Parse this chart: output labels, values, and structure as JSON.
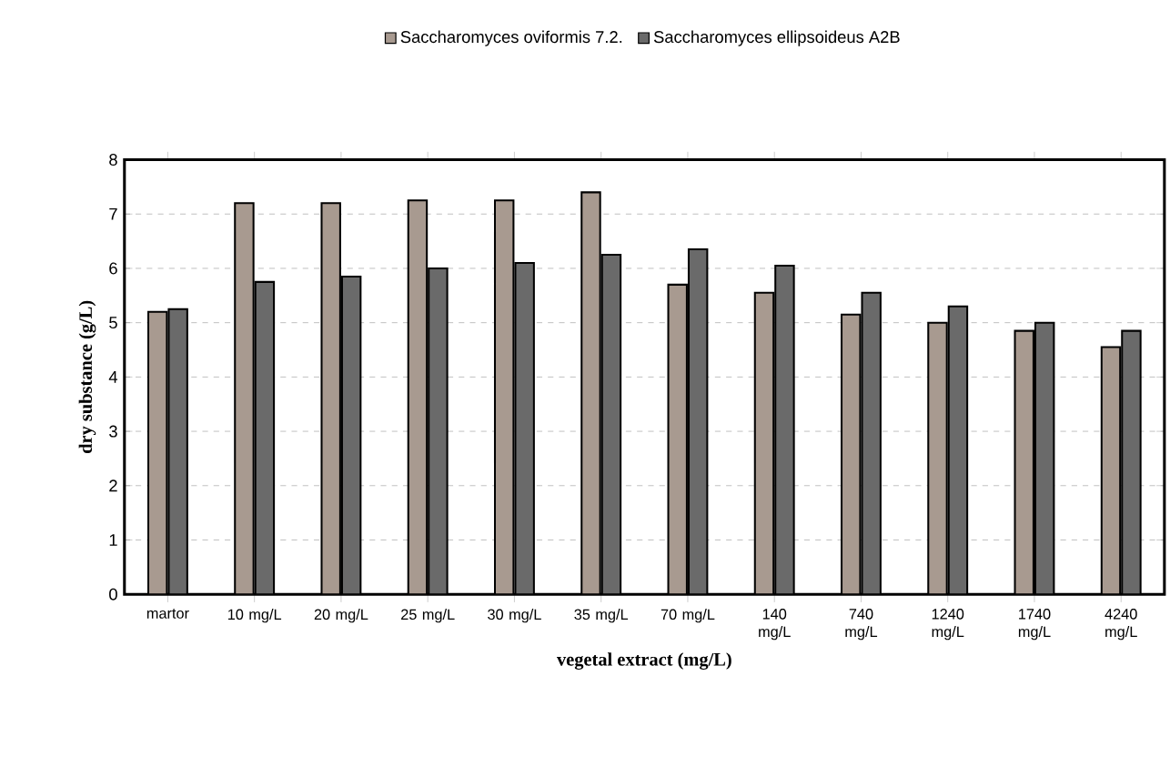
{
  "chart_data": {
    "type": "bar",
    "xlabel": "vegetal extract (mg/L)",
    "ylabel": "dry substance (g/L)",
    "categories": [
      "martor",
      "10 mg/L",
      "20 mg/L",
      "25 mg/L",
      "30 mg/L",
      "35 mg/L",
      "70 mg/L",
      "140 mg/L",
      "740 mg/L",
      "1240 mg/L",
      "1740 mg/L",
      "4240 mg/L"
    ],
    "series": [
      {
        "name": "Saccharomyces oviformis 7.2.",
        "color": "#a89a90",
        "values": [
          5.2,
          7.2,
          7.2,
          7.25,
          7.25,
          7.4,
          5.7,
          5.55,
          5.15,
          5.0,
          4.85,
          4.55
        ]
      },
      {
        "name": "Saccharomyces ellipsoideus A2B",
        "color": "#6a6a6a",
        "values": [
          5.25,
          5.75,
          5.85,
          6.0,
          6.1,
          6.25,
          6.35,
          6.05,
          5.55,
          5.3,
          5.0,
          4.85
        ]
      }
    ],
    "ylim": [
      0,
      8
    ],
    "yticks": [
      0,
      1,
      2,
      3,
      4,
      5,
      6,
      7,
      8
    ],
    "grid": "y",
    "legend": "top"
  }
}
